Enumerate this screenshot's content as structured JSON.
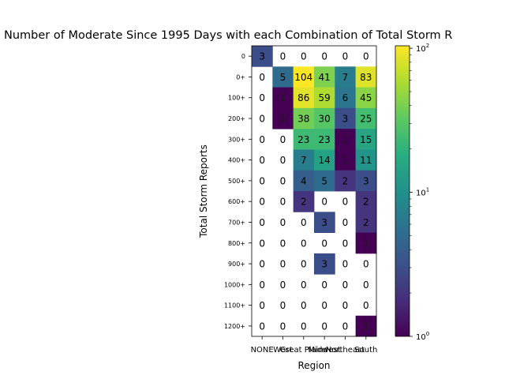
{
  "chart_data": {
    "type": "heatmap",
    "title": "Number of Moderate Since 1995 Days with each Combination of Total Storm R",
    "xlabel": "Region",
    "ylabel": "Total Storm Reports",
    "x_categories": [
      "NONE",
      "West",
      "Great Plains",
      "Midwest",
      "Northeast",
      "South"
    ],
    "y_categories": [
      "0",
      "0+",
      "100+",
      "200+",
      "300+",
      "400+",
      "500+",
      "600+",
      "700+",
      "800+",
      "900+",
      "1000+",
      "1100+",
      "1200+"
    ],
    "values": [
      [
        3,
        0,
        0,
        0,
        0,
        0
      ],
      [
        0,
        5,
        104,
        41,
        7,
        83
      ],
      [
        0,
        1,
        86,
        59,
        6,
        45
      ],
      [
        0,
        1,
        38,
        30,
        3,
        25
      ],
      [
        0,
        0,
        23,
        23,
        1,
        15
      ],
      [
        0,
        0,
        7,
        14,
        1,
        11
      ],
      [
        0,
        0,
        4,
        5,
        2,
        3
      ],
      [
        0,
        0,
        2,
        0,
        0,
        2
      ],
      [
        0,
        0,
        0,
        3,
        0,
        2
      ],
      [
        0,
        0,
        0,
        0,
        0,
        1
      ],
      [
        0,
        0,
        0,
        3,
        0,
        0
      ],
      [
        0,
        0,
        0,
        0,
        0,
        0
      ],
      [
        0,
        0,
        0,
        0,
        0,
        0
      ],
      [
        0,
        0,
        0,
        0,
        0,
        1
      ]
    ],
    "colorbar": {
      "scale": "log",
      "colormap": "viridis",
      "range": [
        1,
        104
      ],
      "ticks": [
        {
          "value": 1,
          "label": "10",
          "exp": "0"
        },
        {
          "value": 10,
          "label": "10",
          "exp": "1"
        },
        {
          "value": 100,
          "label": "10",
          "exp": "2"
        }
      ]
    },
    "zero_cells": "blank"
  }
}
